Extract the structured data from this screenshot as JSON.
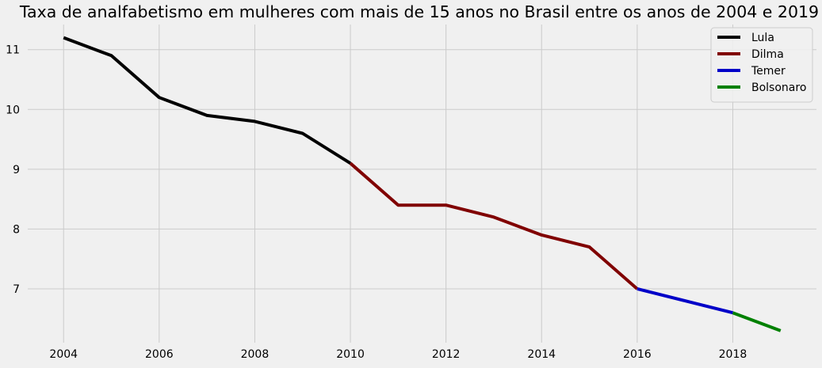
{
  "chart_data": {
    "type": "line",
    "title": "Taxa de analfabetismo em mulheres com mais de 15 anos no Brasil entre os anos de 2004 e 2019",
    "xlabel": "",
    "ylabel": "",
    "xlim": [
      2003.25,
      2019.75
    ],
    "ylim": [
      6.1,
      11.42
    ],
    "x_ticks": [
      2004,
      2006,
      2008,
      2010,
      2012,
      2014,
      2016,
      2018
    ],
    "y_ticks": [
      7,
      8,
      9,
      10,
      11
    ],
    "grid": true,
    "legend_position": "top-right",
    "series": [
      {
        "name": "Lula",
        "color": "#000000",
        "x": [
          2004,
          2005,
          2006,
          2007,
          2008,
          2009,
          2010
        ],
        "y": [
          11.2,
          10.9,
          10.2,
          9.9,
          9.8,
          9.6,
          9.1
        ]
      },
      {
        "name": "Dilma",
        "color": "#800000",
        "x": [
          2010,
          2011,
          2012,
          2013,
          2014,
          2015,
          2016
        ],
        "y": [
          9.1,
          8.4,
          8.4,
          8.2,
          7.9,
          7.7,
          7.0
        ]
      },
      {
        "name": "Temer",
        "color": "#0000c8",
        "x": [
          2016,
          2017,
          2018
        ],
        "y": [
          7.0,
          6.8,
          6.6
        ]
      },
      {
        "name": "Bolsonaro",
        "color": "#008000",
        "x": [
          2018,
          2019
        ],
        "y": [
          6.6,
          6.3
        ]
      }
    ]
  }
}
